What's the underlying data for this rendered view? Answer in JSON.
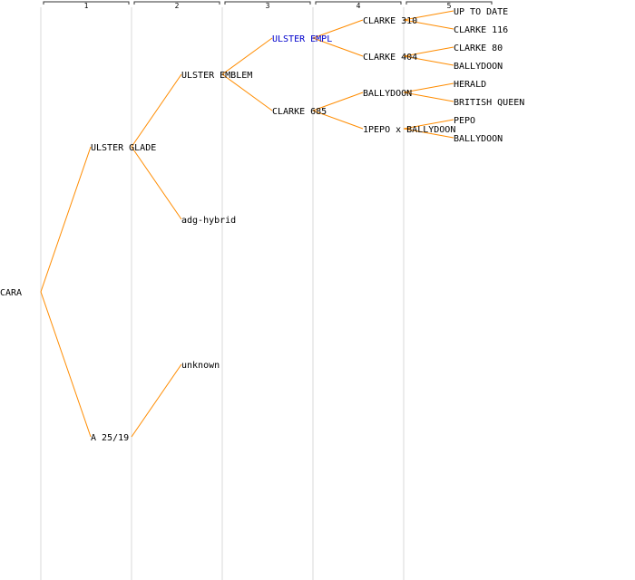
{
  "generations": [
    {
      "number": "1"
    },
    {
      "number": "2"
    },
    {
      "number": "3"
    },
    {
      "number": "4"
    },
    {
      "number": "5"
    }
  ],
  "colors": {
    "edge": "#ff8c00",
    "text": "#000000",
    "highlight_text": "#0000cc",
    "gridline": "#e6e6e6",
    "bracket": "#333333"
  },
  "tree": {
    "name": "CARA",
    "children": [
      {
        "name": "ULSTER GLADE",
        "children": [
          {
            "name": "ULSTER EMBLEM",
            "children": [
              {
                "name": "ULSTER EMPL",
                "highlight": true,
                "children": [
                  {
                    "name": "CLARKE 310",
                    "children": [
                      {
                        "name": "UP TO DATE"
                      },
                      {
                        "name": "CLARKE 116"
                      }
                    ]
                  },
                  {
                    "name": "CLARKE 404",
                    "children": [
                      {
                        "name": "CLARKE 80"
                      },
                      {
                        "name": "BALLYDOON"
                      }
                    ]
                  }
                ]
              },
              {
                "name": "CLARKE 685",
                "children": [
                  {
                    "name": "BALLYDOON",
                    "children": [
                      {
                        "name": "HERALD"
                      },
                      {
                        "name": "BRITISH QUEEN"
                      }
                    ]
                  },
                  {
                    "name": "1PEPO x BALLYDOON",
                    "children": [
                      {
                        "name": "PEPO"
                      },
                      {
                        "name": "BALLYDOON"
                      }
                    ]
                  }
                ]
              }
            ]
          },
          {
            "name": "adg-hybrid"
          }
        ]
      },
      {
        "name": "A 25/19",
        "children": [
          {
            "name": "unknown"
          }
        ]
      }
    ]
  }
}
